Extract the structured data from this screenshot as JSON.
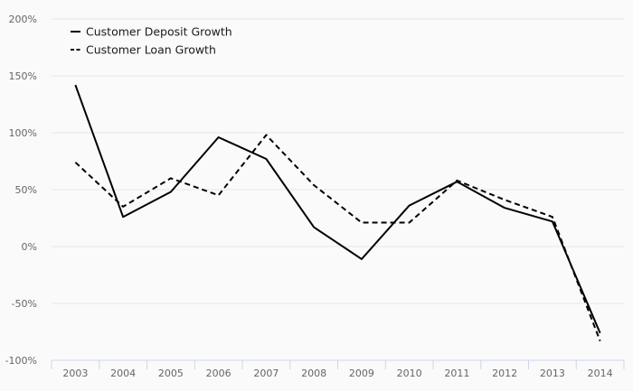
{
  "chart_data": {
    "type": "line",
    "title": "",
    "xlabel": "",
    "ylabel": "",
    "categories": [
      "2003",
      "2004",
      "2005",
      "2006",
      "2007",
      "2008",
      "2009",
      "2010",
      "2011",
      "2012",
      "2013",
      "2014"
    ],
    "series": [
      {
        "name": "Customer Deposit Growth",
        "line_style": "solid",
        "color": "#000000",
        "values": [
          142,
          26,
          48,
          96,
          77,
          17,
          -11,
          36,
          57,
          34,
          22,
          -76
        ]
      },
      {
        "name": "Customer Loan Growth",
        "line_style": "dashed",
        "color": "#000000",
        "values": [
          74,
          35,
          60,
          45,
          98,
          54,
          21,
          21,
          58,
          41,
          26,
          -83
        ]
      }
    ],
    "yticks": [
      200,
      150,
      100,
      50,
      0,
      -50,
      -100
    ],
    "ytick_labels": [
      "200%",
      "150%",
      "100%",
      "50%",
      "0%",
      "-50%",
      "-100%"
    ],
    "ylim": [
      -100,
      200
    ],
    "grid": true,
    "legend_position": "top-left"
  }
}
